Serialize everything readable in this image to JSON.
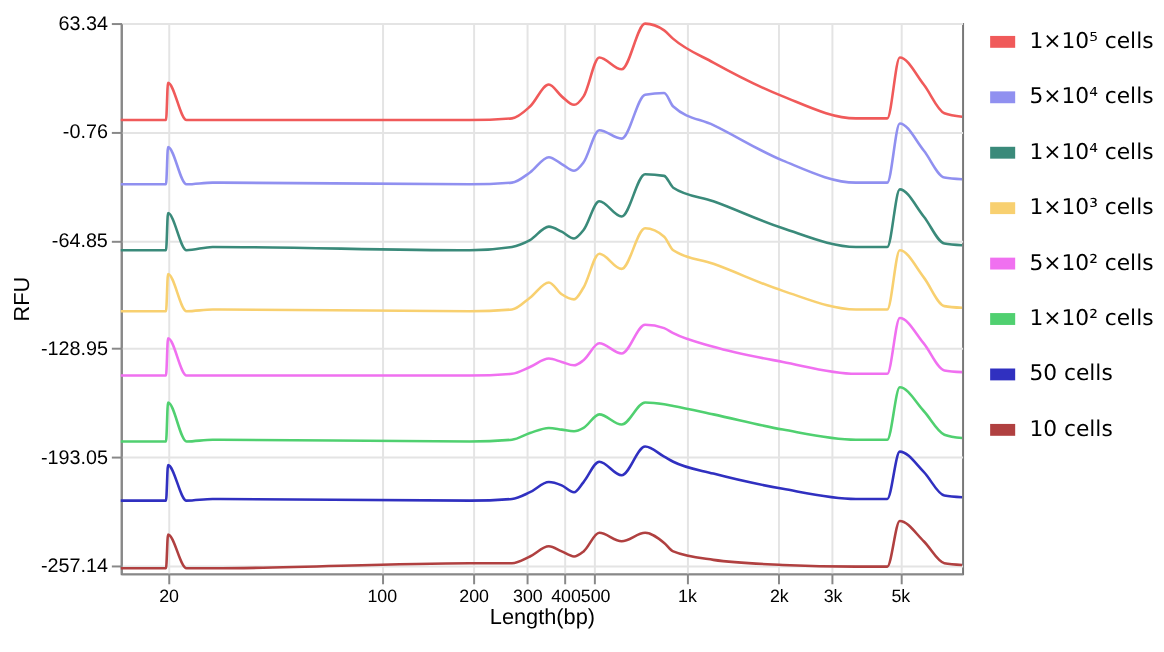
{
  "chart_data": {
    "type": "line",
    "xlabel": "Length(bp)",
    "ylabel": "RFU",
    "x": [
      14,
      19,
      19.7,
      20,
      23,
      28,
      195,
      268,
      307,
      354,
      390,
      428,
      460,
      518,
      613,
      732,
      845,
      905,
      1225,
      2070,
      3590,
      4550,
      5000,
      5990,
      7000,
      8000
    ],
    "xlim": [
      14,
      8000
    ],
    "xticks": [
      20,
      100,
      200,
      300,
      400,
      500,
      {
        "value": 1000,
        "label": "1k"
      },
      {
        "value": 2000,
        "label": "2k"
      },
      {
        "value": 3000,
        "label": "3k"
      },
      {
        "value": 5000,
        "label": "5k"
      }
    ],
    "ylim": [
      -262,
      63.34
    ],
    "yticks": [
      63.34,
      -0.76,
      -64.85,
      -128.95,
      -193.05,
      -257.14
    ],
    "log": "x",
    "grid": true,
    "legend": "right",
    "marker": "none",
    "line_style": "solid",
    "series": [
      {
        "name": "1×10⁵ cells",
        "color": "#f05a5a",
        "values": [
          6,
          6,
          6,
          28,
          6,
          6,
          6,
          7,
          14,
          27,
          20,
          15,
          20,
          43,
          36,
          63,
          59,
          54,
          40,
          20,
          7,
          7,
          43,
          27,
          10,
          8
        ]
      },
      {
        "name": "5×10⁴ cells",
        "color": "#9090f0",
        "values": [
          -32,
          -32,
          -32,
          -10,
          -32,
          -31,
          -32,
          -31,
          -25,
          -16,
          -20,
          -24,
          -19,
          0,
          -5,
          21,
          22,
          14,
          3,
          -18,
          -31,
          -31,
          4,
          -12,
          -28,
          -29
        ]
      },
      {
        "name": "1×10⁴ cells",
        "color": "#3a8a7a",
        "values": [
          -71,
          -71,
          -71,
          -49,
          -71,
          -69,
          -71,
          -69,
          -65,
          -57,
          -60,
          -64,
          -59,
          -42,
          -51,
          -26,
          -27,
          -34,
          -42,
          -58,
          -69,
          -69,
          -35,
          -51,
          -67,
          -68
        ]
      },
      {
        "name": "1×10³ cells",
        "color": "#f8d070",
        "values": [
          -107,
          -107,
          -107,
          -85,
          -107,
          -106,
          -107,
          -106,
          -99,
          -90,
          -97,
          -100,
          -93,
          -73,
          -82,
          -58,
          -63,
          -71,
          -79,
          -95,
          -106,
          -106,
          -71,
          -87,
          -104,
          -105
        ]
      },
      {
        "name": "5×10² cells",
        "color": "#f070f0",
        "values": [
          -145,
          -145,
          -145,
          -123,
          -145,
          -145,
          -145,
          -144,
          -140,
          -135,
          -137,
          -139,
          -136,
          -126,
          -132,
          -115,
          -117,
          -120,
          -128,
          -137,
          -144,
          -144,
          -111,
          -126,
          -142,
          -143
        ]
      },
      {
        "name": "1×10² cells",
        "color": "#50d070",
        "values": [
          -184,
          -184,
          -184,
          -161,
          -184,
          -183,
          -184,
          -183,
          -179,
          -176,
          -177,
          -178,
          -176,
          -168,
          -174,
          -161,
          -162,
          -163,
          -168,
          -177,
          -183,
          -183,
          -152,
          -166,
          -180,
          -182
        ]
      },
      {
        "name": "50 cells",
        "color": "#3030c0",
        "values": [
          -219,
          -219,
          -219,
          -198,
          -219,
          -218,
          -219,
          -218,
          -214,
          -208,
          -210,
          -214,
          -208,
          -196,
          -204,
          -187,
          -193,
          -196,
          -203,
          -212,
          -218,
          -218,
          -190,
          -202,
          -216,
          -217
        ]
      },
      {
        "name": "10 cells",
        "color": "#b04040",
        "values": [
          -259,
          -259,
          -259,
          -239,
          -259,
          -259,
          -256,
          -256,
          -252,
          -246,
          -249,
          -252,
          -249,
          -238,
          -243,
          -238,
          -244,
          -249,
          -254,
          -257,
          -258,
          -258,
          -231,
          -243,
          -256,
          -257
        ]
      }
    ]
  }
}
